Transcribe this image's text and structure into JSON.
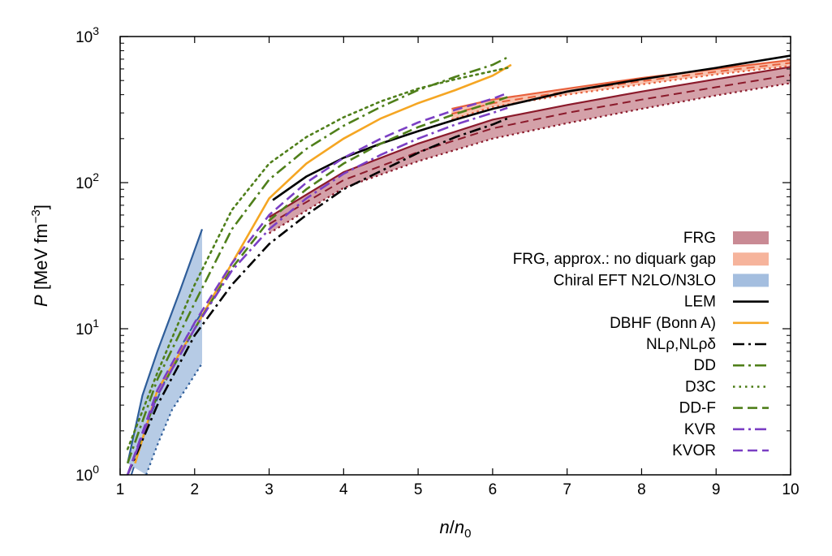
{
  "chart_data": {
    "type": "line",
    "xlabel": "n/n0",
    "ylabel": "P [MeV fm−3]",
    "xlim": [
      1,
      10
    ],
    "ylim": [
      1,
      1000
    ],
    "yscale": "log",
    "x_ticks": [
      "1",
      "2",
      "3",
      "4",
      "5",
      "6",
      "7",
      "8",
      "9",
      "10"
    ],
    "y_ticks": [
      {
        "base": "10",
        "exp": "0"
      },
      {
        "base": "10",
        "exp": "1"
      },
      {
        "base": "10",
        "exp": "2"
      },
      {
        "base": "10",
        "exp": "3"
      }
    ],
    "grid": false,
    "legend_position": "right",
    "series": [
      {
        "name": "FRG",
        "kind": "band",
        "color": "#8b1a2b",
        "fill": "#c98a94",
        "upper": [
          [
            3,
            58
          ],
          [
            4,
            118
          ],
          [
            5,
            185
          ],
          [
            6,
            270
          ],
          [
            7,
            340
          ],
          [
            8,
            420
          ],
          [
            9,
            510
          ],
          [
            10,
            620
          ]
        ],
        "lower": [
          [
            3,
            45
          ],
          [
            4,
            92
          ],
          [
            5,
            140
          ],
          [
            6,
            200
          ],
          [
            7,
            255
          ],
          [
            8,
            320
          ],
          [
            9,
            395
          ],
          [
            10,
            480
          ]
        ],
        "middle": [
          [
            3,
            52
          ],
          [
            4,
            104
          ],
          [
            5,
            162
          ],
          [
            6,
            235
          ],
          [
            7,
            300
          ],
          [
            8,
            370
          ],
          [
            9,
            450
          ],
          [
            10,
            545
          ]
        ]
      },
      {
        "name": "FRG, approx.: no diquark gap",
        "kind": "band",
        "color": "#e8603c",
        "fill": "#f6b49c",
        "upper": [
          [
            5.45,
            320
          ],
          [
            6,
            370
          ],
          [
            7,
            440
          ],
          [
            8,
            520
          ],
          [
            9,
            600
          ],
          [
            10,
            690
          ]
        ],
        "lower": [
          [
            5.45,
            270
          ],
          [
            6,
            330
          ],
          [
            7,
            400
          ],
          [
            8,
            470
          ],
          [
            9,
            550
          ],
          [
            10,
            630
          ]
        ],
        "middle": [
          [
            5.45,
            295
          ],
          [
            6,
            350
          ],
          [
            7,
            420
          ],
          [
            8,
            495
          ],
          [
            9,
            575
          ],
          [
            10,
            660
          ]
        ]
      },
      {
        "name": "Chiral EFT N2LO/N3LO",
        "kind": "band",
        "color": "#2e5d99",
        "fill": "#a4bedf",
        "upper": [
          [
            1.1,
            1.2
          ],
          [
            1.3,
            3.5
          ],
          [
            1.5,
            7
          ],
          [
            1.8,
            18
          ],
          [
            2.1,
            48
          ]
        ],
        "lower": [
          [
            1.35,
            1
          ],
          [
            1.5,
            1.6
          ],
          [
            1.7,
            2.8
          ],
          [
            1.9,
            4
          ],
          [
            2.1,
            5.8
          ]
        ],
        "middle": [
          [
            1.15,
            1
          ],
          [
            1.4,
            2.5
          ],
          [
            1.7,
            5.8
          ],
          [
            1.9,
            9
          ],
          [
            2.1,
            13
          ]
        ]
      },
      {
        "name": "LEM",
        "kind": "line",
        "dash": "solid",
        "color": "#000000",
        "points": [
          [
            3.05,
            76
          ],
          [
            3.5,
            110
          ],
          [
            4,
            148
          ],
          [
            4.5,
            185
          ],
          [
            5,
            225
          ],
          [
            5.5,
            270
          ],
          [
            6,
            320
          ],
          [
            7,
            420
          ],
          [
            8,
            510
          ],
          [
            9,
            610
          ],
          [
            10,
            740
          ]
        ]
      },
      {
        "name": "DBHF (Bonn A)",
        "kind": "line",
        "dash": "solid",
        "color": "#f5a623",
        "points": [
          [
            1.2,
            1.2
          ],
          [
            1.5,
            3.8
          ],
          [
            2,
            10
          ],
          [
            2.5,
            28
          ],
          [
            3,
            78
          ],
          [
            3.5,
            135
          ],
          [
            4,
            200
          ],
          [
            4.5,
            275
          ],
          [
            5,
            350
          ],
          [
            5.5,
            430
          ],
          [
            6,
            540
          ],
          [
            6.25,
            640
          ]
        ]
      },
      {
        "name": "NLρ,NLρδ",
        "kind": "line",
        "dash": "dashdot",
        "color": "#000000",
        "points": [
          [
            1.1,
            1
          ],
          [
            1.5,
            3
          ],
          [
            2,
            9
          ],
          [
            2.5,
            20
          ],
          [
            3,
            38
          ],
          [
            3.5,
            60
          ],
          [
            4,
            90
          ],
          [
            4.5,
            120
          ],
          [
            5,
            160
          ],
          [
            5.5,
            205
          ],
          [
            6,
            250
          ],
          [
            6.2,
            275
          ]
        ]
      },
      {
        "name": "DD",
        "kind": "line",
        "dash": "dashdot",
        "color": "#4f7f1a",
        "points": [
          [
            1.1,
            1.2
          ],
          [
            1.5,
            4.5
          ],
          [
            2,
            15
          ],
          [
            2.5,
            48
          ],
          [
            3,
            105
          ],
          [
            3.5,
            170
          ],
          [
            4,
            245
          ],
          [
            4.5,
            330
          ],
          [
            5,
            430
          ],
          [
            5.5,
            530
          ],
          [
            6,
            640
          ],
          [
            6.2,
            720
          ]
        ]
      },
      {
        "name": "D3C",
        "kind": "line",
        "dash": "dotted",
        "color": "#4f7f1a",
        "points": [
          [
            1.1,
            1.5
          ],
          [
            1.5,
            5
          ],
          [
            2,
            20
          ],
          [
            2.5,
            65
          ],
          [
            3,
            135
          ],
          [
            3.5,
            205
          ],
          [
            4,
            280
          ],
          [
            4.5,
            360
          ],
          [
            5,
            440
          ],
          [
            5.5,
            510
          ],
          [
            6,
            580
          ],
          [
            6.2,
            610
          ]
        ]
      },
      {
        "name": "DD-F",
        "kind": "line",
        "dash": "dashed",
        "color": "#4f7f1a",
        "points": [
          [
            1.1,
            1
          ],
          [
            1.5,
            3.5
          ],
          [
            2,
            10
          ],
          [
            2.5,
            26
          ],
          [
            3,
            55
          ],
          [
            3.5,
            90
          ],
          [
            4,
            135
          ],
          [
            4.5,
            185
          ],
          [
            5,
            240
          ],
          [
            5.5,
            295
          ],
          [
            6,
            355
          ],
          [
            6.2,
            385
          ]
        ]
      },
      {
        "name": "KVR",
        "kind": "line",
        "dash": "dashdot",
        "color": "#7b3fc4",
        "points": [
          [
            1.1,
            1
          ],
          [
            1.5,
            3.5
          ],
          [
            2,
            10
          ],
          [
            2.5,
            25
          ],
          [
            3,
            48
          ],
          [
            3.5,
            78
          ],
          [
            4,
            115
          ],
          [
            4.5,
            155
          ],
          [
            5,
            200
          ],
          [
            5.5,
            250
          ],
          [
            6,
            300
          ],
          [
            6.2,
            325
          ]
        ]
      },
      {
        "name": "KVOR",
        "kind": "line",
        "dash": "dashed",
        "color": "#7b3fc4",
        "points": [
          [
            1.1,
            1
          ],
          [
            1.5,
            3.8
          ],
          [
            2,
            11
          ],
          [
            2.5,
            28
          ],
          [
            3,
            60
          ],
          [
            3.5,
            100
          ],
          [
            4,
            148
          ],
          [
            4.5,
            200
          ],
          [
            5,
            258
          ],
          [
            5.5,
            315
          ],
          [
            6,
            375
          ],
          [
            6.2,
            410
          ]
        ]
      }
    ]
  }
}
